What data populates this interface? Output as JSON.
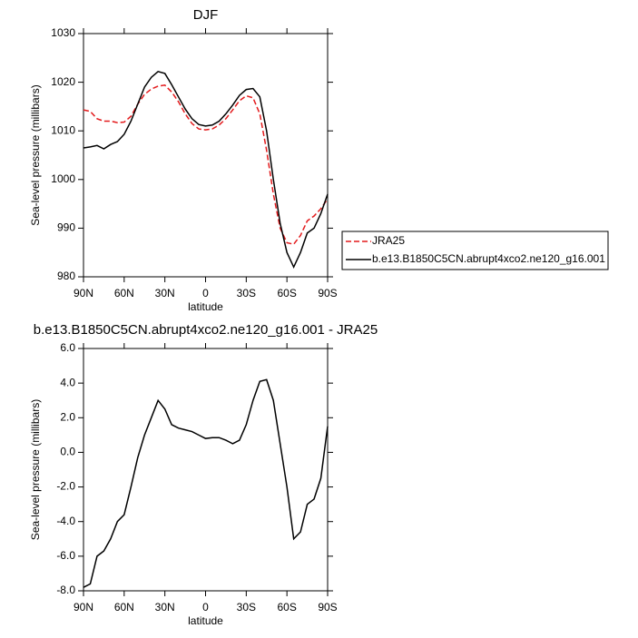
{
  "chart_data": [
    {
      "type": "line",
      "title": "DJF",
      "xlabel": "latitude",
      "ylabel": "Sea-level pressure (millibars)",
      "x": [
        90,
        85,
        80,
        75,
        70,
        65,
        60,
        55,
        50,
        45,
        40,
        35,
        30,
        25,
        20,
        15,
        10,
        5,
        0,
        -5,
        -10,
        -15,
        -20,
        -25,
        -30,
        -35,
        -40,
        -45,
        -50,
        -55,
        -60,
        -65,
        -70,
        -75,
        -80,
        -85,
        -90
      ],
      "xlim": [
        90,
        -90
      ],
      "xticks": [
        {
          "value": 90,
          "label": "90N"
        },
        {
          "value": 60,
          "label": "60N"
        },
        {
          "value": 30,
          "label": "30N"
        },
        0,
        {
          "value": -30,
          "label": "30S"
        },
        {
          "value": -60,
          "label": "60S"
        },
        {
          "value": -90,
          "label": "90S"
        }
      ],
      "ylim": [
        980,
        1030
      ],
      "yticks": [
        980,
        990,
        1000,
        1010,
        1020,
        1030
      ],
      "legend": "right",
      "series": [
        {
          "name": "JRA25",
          "color": "#e31a1c",
          "dash": true,
          "values": [
            1014.3,
            1014,
            1012.5,
            1012,
            1012,
            1011.7,
            1011.8,
            1013,
            1015.5,
            1017.5,
            1018.6,
            1019.2,
            1019.4,
            1018,
            1016,
            1013.5,
            1011.5,
            1010.4,
            1010.2,
            1010.4,
            1011.2,
            1012.5,
            1014.3,
            1016.2,
            1017.2,
            1016.8,
            1013.5,
            1006,
            997,
            990,
            987,
            986.7,
            988.5,
            991.5,
            992.5,
            994,
            996
          ]
        },
        {
          "name": "b.e13.B1850C5CN.abrupt4xco2.ne120_g16.001",
          "color": "#000000",
          "dash": false,
          "values": [
            1006.5,
            1006.7,
            1007,
            1006.3,
            1007.2,
            1007.8,
            1009.3,
            1012,
            1015.5,
            1019,
            1021,
            1022.2,
            1021.8,
            1019.5,
            1017,
            1014.5,
            1012.5,
            1011.3,
            1011,
            1011.2,
            1012,
            1013.5,
            1015.3,
            1017.3,
            1018.5,
            1018.7,
            1017,
            1010,
            1000,
            991,
            985,
            982,
            985,
            989,
            990,
            993,
            997
          ]
        }
      ]
    },
    {
      "type": "line",
      "title": "b.e13.B1850C5CN.abrupt4xco2.ne120_g16.001 - JRA25",
      "xlabel": "latitude",
      "ylabel": "Sea-level pressure (millibars)",
      "x": [
        90,
        85,
        80,
        75,
        70,
        65,
        60,
        55,
        50,
        45,
        40,
        35,
        30,
        25,
        20,
        15,
        10,
        5,
        0,
        -5,
        -10,
        -15,
        -20,
        -25,
        -30,
        -35,
        -40,
        -45,
        -50,
        -55,
        -60,
        -65,
        -70,
        -75,
        -80,
        -85,
        -90
      ],
      "xlim": [
        90,
        -90
      ],
      "xticks": [
        {
          "value": 90,
          "label": "90N"
        },
        {
          "value": 60,
          "label": "60N"
        },
        {
          "value": 30,
          "label": "30N"
        },
        0,
        {
          "value": -30,
          "label": "30S"
        },
        {
          "value": -60,
          "label": "60S"
        },
        {
          "value": -90,
          "label": "90S"
        }
      ],
      "ylim": [
        -8,
        6
      ],
      "yticks": [
        {
          "value": -8,
          "label": "-8.0"
        },
        {
          "value": -6,
          "label": "-6.0"
        },
        {
          "value": -4,
          "label": "-4.0"
        },
        {
          "value": -2,
          "label": "-2.0"
        },
        {
          "value": 0,
          "label": "0.0"
        },
        {
          "value": 2,
          "label": "2.0"
        },
        {
          "value": 4,
          "label": "4.0"
        },
        {
          "value": 6,
          "label": "6.0"
        }
      ],
      "series": [
        {
          "color": "#000000",
          "dash": false,
          "values": [
            -7.8,
            -7.6,
            -6,
            -5.7,
            -5,
            -4,
            -3.6,
            -2,
            -0.3,
            1,
            2,
            3,
            2.5,
            1.6,
            1.4,
            1.3,
            1.2,
            1,
            0.8,
            0.85,
            0.85,
            0.7,
            0.5,
            0.7,
            1.6,
            3,
            4.1,
            4.2,
            3,
            0.5,
            -2,
            -5,
            -4.6,
            -3,
            -2.7,
            -1.5,
            1.5
          ]
        }
      ]
    }
  ]
}
